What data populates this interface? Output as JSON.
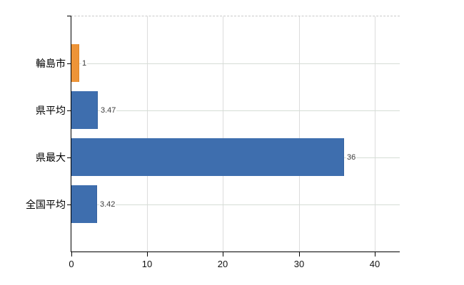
{
  "chart_data": {
    "type": "bar",
    "orientation": "horizontal",
    "title": "",
    "xlabel": "",
    "ylabel": "",
    "categories": [
      "輪島市",
      "県平均",
      "県最大",
      "全国平均"
    ],
    "values": [
      1,
      3.47,
      36,
      3.42
    ],
    "value_labels": [
      "1",
      "3.47",
      "36",
      "3.42"
    ],
    "bar_colors": [
      "#ED9438",
      "#3E6EAE",
      "#3E6EAE",
      "#3E6EAE"
    ],
    "bar_border_colors": [
      "#DE8628",
      "#36629E",
      "#36629E",
      "#36629E"
    ],
    "x_ticks": [
      0,
      10,
      20,
      30,
      40
    ],
    "x_tick_labels": [
      "0",
      "10",
      "20",
      "30",
      "40"
    ],
    "xlim": [
      0,
      43.3
    ],
    "grid": true,
    "legend": false,
    "colors": {
      "accent_orange": "#ED9438",
      "series_blue": "#3E6EAE",
      "axis": "#000000",
      "gridline_vertical": "#dcdcdc",
      "gridline_horizontal": "#d5ddd5",
      "plot_top_border": "#c9c9c9",
      "background": "#ffffff",
      "value_text": "#3c3c3c",
      "tick_text": "#111111"
    }
  }
}
